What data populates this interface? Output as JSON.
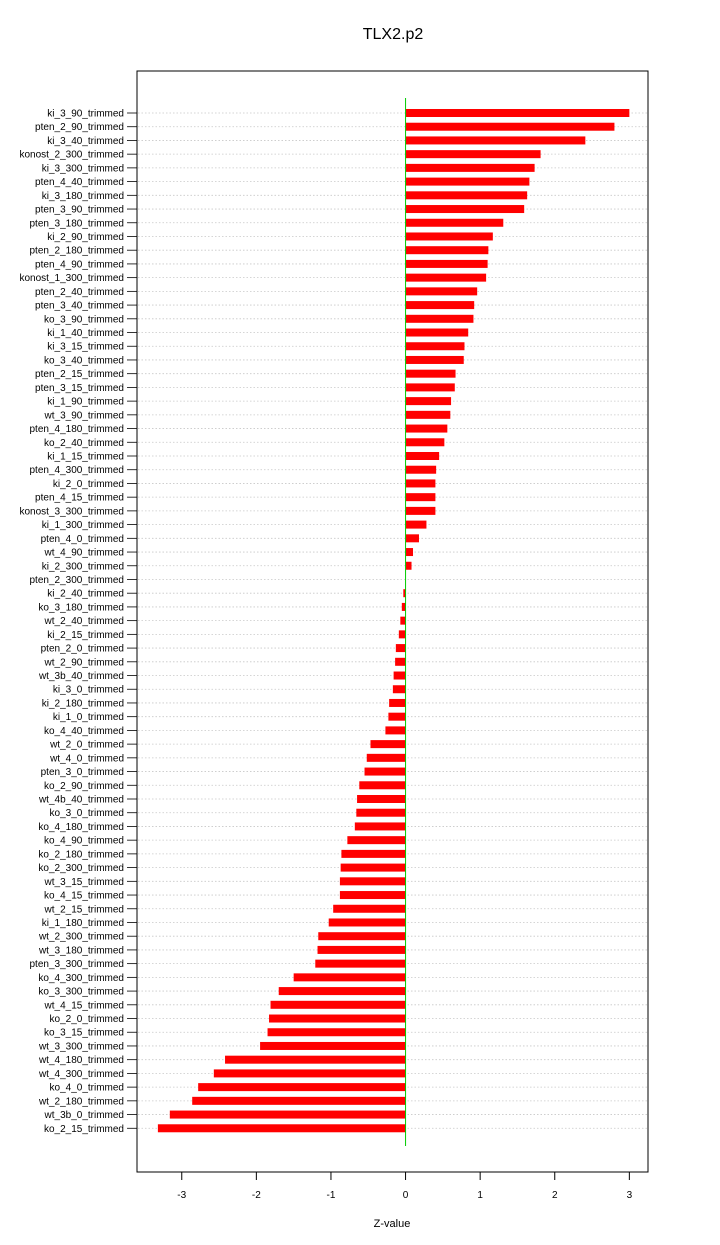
{
  "chart_data": {
    "type": "bar",
    "orientation": "horizontal",
    "title": "TLX2.p2",
    "xlabel": "Z-value",
    "ylabel": "",
    "xlim": [
      -3.6,
      3.25
    ],
    "xticks": [
      "-3",
      "-2",
      "-1",
      "0",
      "1",
      "2",
      "3"
    ],
    "bar_color": "#ff0000",
    "zero_line_color": "#00cc00",
    "grid": "horizontal dotted",
    "categories": [
      "ki_3_90_trimmed",
      "pten_2_90_trimmed",
      "ki_3_40_trimmed",
      "konost_2_300_trimmed",
      "ki_3_300_trimmed",
      "pten_4_40_trimmed",
      "ki_3_180_trimmed",
      "pten_3_90_trimmed",
      "pten_3_180_trimmed",
      "ki_2_90_trimmed",
      "pten_2_180_trimmed",
      "pten_4_90_trimmed",
      "konost_1_300_trimmed",
      "pten_2_40_trimmed",
      "pten_3_40_trimmed",
      "ko_3_90_trimmed",
      "ki_1_40_trimmed",
      "ki_3_15_trimmed",
      "ko_3_40_trimmed",
      "pten_2_15_trimmed",
      "pten_3_15_trimmed",
      "ki_1_90_trimmed",
      "wt_3_90_trimmed",
      "pten_4_180_trimmed",
      "ko_2_40_trimmed",
      "ki_1_15_trimmed",
      "pten_4_300_trimmed",
      "ki_2_0_trimmed",
      "pten_4_15_trimmed",
      "konost_3_300_trimmed",
      "ki_1_300_trimmed",
      "pten_4_0_trimmed",
      "wt_4_90_trimmed",
      "ki_2_300_trimmed",
      "pten_2_300_trimmed",
      "ki_2_40_trimmed",
      "ko_3_180_trimmed",
      "wt_2_40_trimmed",
      "ki_2_15_trimmed",
      "pten_2_0_trimmed",
      "wt_2_90_trimmed",
      "wt_3b_40_trimmed",
      "ki_3_0_trimmed",
      "ki_2_180_trimmed",
      "ki_1_0_trimmed",
      "ko_4_40_trimmed",
      "wt_2_0_trimmed",
      "wt_4_0_trimmed",
      "pten_3_0_trimmed",
      "ko_2_90_trimmed",
      "wt_4b_40_trimmed",
      "ko_3_0_trimmed",
      "ko_4_180_trimmed",
      "ko_4_90_trimmed",
      "ko_2_180_trimmed",
      "ko_2_300_trimmed",
      "wt_3_15_trimmed",
      "ko_4_15_trimmed",
      "wt_2_15_trimmed",
      "ki_1_180_trimmed",
      "wt_2_300_trimmed",
      "wt_3_180_trimmed",
      "pten_3_300_trimmed",
      "ko_4_300_trimmed",
      "ko_3_300_trimmed",
      "wt_4_15_trimmed",
      "ko_2_0_trimmed",
      "ko_3_15_trimmed",
      "wt_3_300_trimmed",
      "wt_4_180_trimmed",
      "wt_4_300_trimmed",
      "ko_4_0_trimmed",
      "wt_2_180_trimmed",
      "wt_3b_0_trimmed",
      "ko_2_15_trimmed"
    ],
    "values": [
      3.0,
      2.8,
      2.41,
      1.81,
      1.73,
      1.66,
      1.63,
      1.59,
      1.31,
      1.17,
      1.11,
      1.1,
      1.08,
      0.96,
      0.92,
      0.91,
      0.84,
      0.79,
      0.78,
      0.67,
      0.66,
      0.61,
      0.6,
      0.56,
      0.52,
      0.45,
      0.41,
      0.4,
      0.4,
      0.4,
      0.28,
      0.18,
      0.1,
      0.08,
      0.0,
      -0.03,
      -0.05,
      -0.07,
      -0.09,
      -0.13,
      -0.14,
      -0.16,
      -0.17,
      -0.22,
      -0.23,
      -0.27,
      -0.47,
      -0.52,
      -0.55,
      -0.62,
      -0.65,
      -0.66,
      -0.68,
      -0.78,
      -0.86,
      -0.87,
      -0.88,
      -0.88,
      -0.97,
      -1.03,
      -1.17,
      -1.18,
      -1.21,
      -1.5,
      -1.7,
      -1.81,
      -1.83,
      -1.85,
      -1.95,
      -2.42,
      -2.57,
      -2.78,
      -2.86,
      -3.16,
      -3.32
    ]
  }
}
